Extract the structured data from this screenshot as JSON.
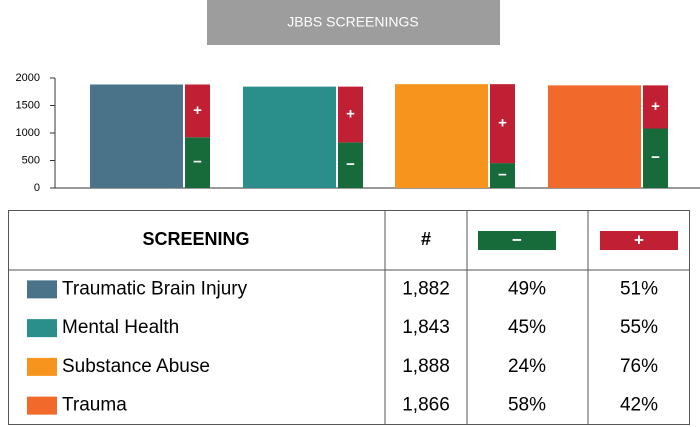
{
  "chart_data": {
    "type": "bar",
    "title": "JBBS SCREENINGS",
    "categories": [
      "Traumatic Brain Injury",
      "Mental Health",
      "Substance Abuse",
      "Trauma"
    ],
    "colors": [
      "#4a7389",
      "#2a8f8a",
      "#f7941d",
      "#f26a2b"
    ],
    "values": [
      1882,
      1843,
      1888,
      1866
    ],
    "series": [
      {
        "name": "−",
        "color": "#176b3a",
        "values": [
          922,
          829,
          453,
          1082
        ]
      },
      {
        "name": "+",
        "color": "#c11f33",
        "values": [
          960,
          1014,
          1435,
          784
        ]
      }
    ],
    "ylim": [
      0,
      2000
    ],
    "yticks": [
      0,
      500,
      1000,
      1500,
      2000
    ]
  },
  "table": {
    "header": [
      "SCREENING",
      "#"
    ],
    "rows": [
      [
        "1,882",
        "49%",
        "51%"
      ],
      [
        "1,843",
        "45%",
        "55%"
      ],
      [
        "1,888",
        "24%",
        "76%"
      ],
      [
        "1,866",
        "58%",
        "42%"
      ]
    ]
  }
}
